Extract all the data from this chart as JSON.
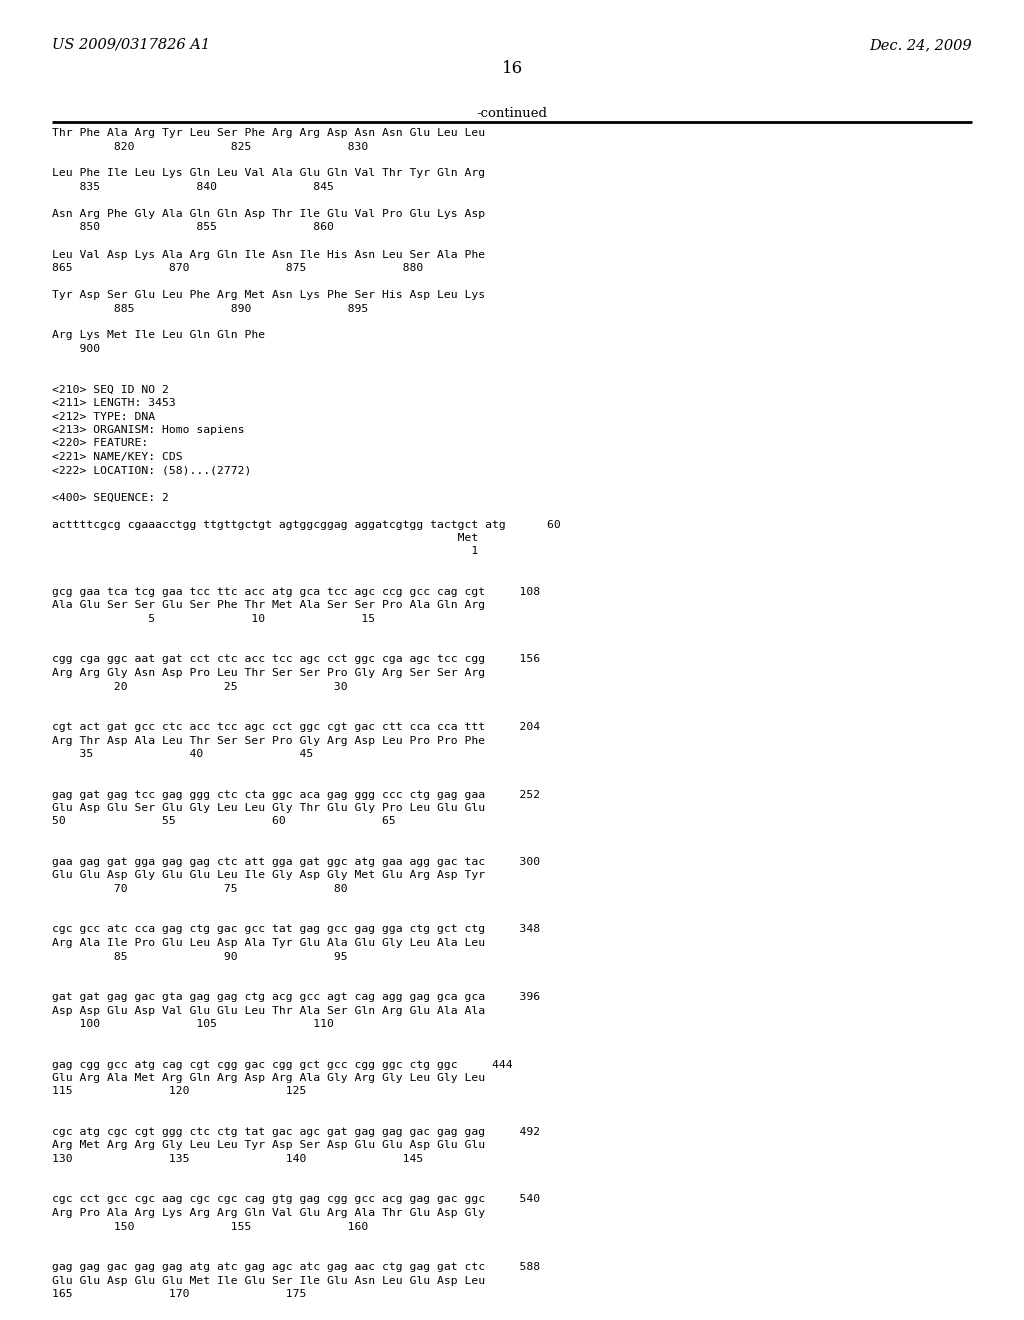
{
  "header_left": "US 2009/0317826 A1",
  "header_right": "Dec. 24, 2009",
  "page_number": "16",
  "continued_label": "-continued",
  "background_color": "#ffffff",
  "text_color": "#000000",
  "content": [
    "Thr Phe Ala Arg Tyr Leu Ser Phe Arg Arg Asp Asn Asn Glu Leu Leu",
    "         820              825              830",
    "",
    "Leu Phe Ile Leu Lys Gln Leu Val Ala Glu Gln Val Thr Tyr Gln Arg",
    "    835              840              845",
    "",
    "Asn Arg Phe Gly Ala Gln Gln Asp Thr Ile Glu Val Pro Glu Lys Asp",
    "    850              855              860",
    "",
    "Leu Val Asp Lys Ala Arg Gln Ile Asn Ile His Asn Leu Ser Ala Phe",
    "865              870              875              880",
    "",
    "Tyr Asp Ser Glu Leu Phe Arg Met Asn Lys Phe Ser His Asp Leu Lys",
    "         885              890              895",
    "",
    "Arg Lys Met Ile Leu Gln Gln Phe",
    "    900",
    "",
    "",
    "<210> SEQ ID NO 2",
    "<211> LENGTH: 3453",
    "<212> TYPE: DNA",
    "<213> ORGANISM: Homo sapiens",
    "<220> FEATURE:",
    "<221> NAME/KEY: CDS",
    "<222> LOCATION: (58)...(2772)",
    "",
    "<400> SEQUENCE: 2",
    "",
    "acttttcgcg cgaaacctgg ttgttgctgt agtggcggag aggatcgtgg tactgct atg      60",
    "                                                           Met",
    "                                                             1",
    "",
    "",
    "gcg gaa tca tcg gaa tcc ttc acc atg gca tcc agc ccg gcc cag cgt     108",
    "Ala Glu Ser Ser Glu Ser Phe Thr Met Ala Ser Ser Pro Ala Gln Arg",
    "              5              10              15",
    "",
    "",
    "cgg cga ggc aat gat cct ctc acc tcc agc cct ggc cga agc tcc cgg     156",
    "Arg Arg Gly Asn Asp Pro Leu Thr Ser Ser Pro Gly Arg Ser Ser Arg",
    "         20              25              30",
    "",
    "",
    "cgt act gat gcc ctc acc tcc agc cct ggc cgt gac ctt cca cca ttt     204",
    "Arg Thr Asp Ala Leu Thr Ser Ser Pro Gly Arg Asp Leu Pro Pro Phe",
    "    35              40              45",
    "",
    "",
    "gag gat gag tcc gag ggg ctc cta ggc aca gag ggg ccc ctg gag gaa     252",
    "Glu Asp Glu Ser Glu Gly Leu Leu Gly Thr Glu Gly Pro Leu Glu Glu",
    "50              55              60              65",
    "",
    "",
    "gaa gag gat gga gag gag ctc att gga gat ggc atg gaa agg gac tac     300",
    "Glu Glu Asp Gly Glu Glu Leu Ile Gly Asp Gly Met Glu Arg Asp Tyr",
    "         70              75              80",
    "",
    "",
    "cgc gcc atc cca gag ctg gac gcc tat gag gcc gag gga ctg gct ctg     348",
    "Arg Ala Ile Pro Glu Leu Asp Ala Tyr Glu Ala Glu Gly Leu Ala Leu",
    "         85              90              95",
    "",
    "",
    "gat gat gag gac gta gag gag ctg acg gcc agt cag agg gag gca gca     396",
    "Asp Asp Glu Asp Val Glu Glu Leu Thr Ala Ser Gln Arg Glu Ala Ala",
    "    100              105              110",
    "",
    "",
    "gag cgg gcc atg cag cgt cgg gac cgg gct gcc cgg ggc ctg ggc     444",
    "Glu Arg Ala Met Arg Gln Arg Asp Arg Ala Gly Arg Gly Leu Gly Leu",
    "115              120              125",
    "",
    "",
    "cgc atg cgc cgt ggg ctc ctg tat gac agc gat gag gag gac gag gag     492",
    "Arg Met Arg Arg Gly Leu Leu Tyr Asp Ser Asp Glu Glu Asp Glu Glu",
    "130              135              140              145",
    "",
    "",
    "cgc cct gcc cgc aag cgc cgc cag gtg gag cgg gcc acg gag gac ggc     540",
    "Arg Pro Ala Arg Lys Arg Arg Gln Val Glu Arg Ala Thr Glu Asp Gly",
    "         150              155              160",
    "",
    "",
    "gag gag gac gag gag atg atc gag agc atc gag aac ctg gag gat ctc     588",
    "Glu Glu Asp Glu Glu Met Ile Glu Ser Ile Glu Asn Leu Glu Asp Leu",
    "165              170              175"
  ]
}
